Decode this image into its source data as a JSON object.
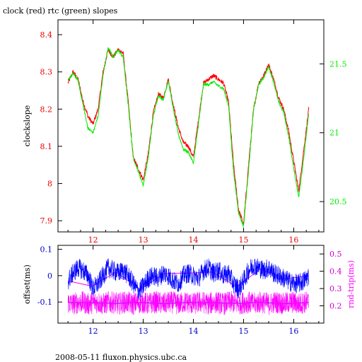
{
  "header": {
    "title": "clock (red) rtc (green) slopes"
  },
  "footer": {
    "text": "2008-05-11 fluxon.physics.ubc.ca"
  },
  "colors": {
    "red": "#ff0000",
    "green": "#00ee00",
    "blue": "#0000ff",
    "magenta": "#ff00ff",
    "axes": "#000000",
    "tick_red": "#ee0000",
    "tick_blue": "#0000cc",
    "tick_magenta": "#cc00cc"
  },
  "chart_data": [
    {
      "type": "line",
      "title": "clock (red) rtc (green) slopes",
      "xlabel": "",
      "ylabel": "clockslope",
      "y2label": "",
      "xlim": [
        11.3,
        16.6
      ],
      "ylim": [
        7.87,
        8.44
      ],
      "y2lim": [
        20.28,
        21.82
      ],
      "x_ticks": [
        "12",
        "13",
        "14",
        "15",
        "16"
      ],
      "y_ticks": [
        "7.9",
        "8",
        "8.1",
        "8.2",
        "8.3",
        "8.4"
      ],
      "y2_ticks": [
        "20.5",
        "21",
        "21.5"
      ],
      "series": [
        {
          "name": "clock",
          "axis": "left",
          "x": [
            11.5,
            11.6,
            11.7,
            11.8,
            11.9,
            12.0,
            12.1,
            12.2,
            12.3,
            12.4,
            12.5,
            12.6,
            12.7,
            12.8,
            12.9,
            13.0,
            13.1,
            13.2,
            13.3,
            13.4,
            13.5,
            13.6,
            13.7,
            13.8,
            13.9,
            14.0,
            14.1,
            14.2,
            14.3,
            14.4,
            14.5,
            14.6,
            14.7,
            14.8,
            14.9,
            15.0,
            15.1,
            15.2,
            15.3,
            15.4,
            15.5,
            15.6,
            15.7,
            15.8,
            15.9,
            16.0,
            16.1,
            16.2,
            16.3
          ],
          "values": [
            8.27,
            8.3,
            8.28,
            8.22,
            8.18,
            8.16,
            8.2,
            8.3,
            8.36,
            8.34,
            8.36,
            8.35,
            8.22,
            8.07,
            8.04,
            8.01,
            8.08,
            8.19,
            8.24,
            8.23,
            8.28,
            8.21,
            8.15,
            8.11,
            8.1,
            8.07,
            8.17,
            8.27,
            8.28,
            8.29,
            8.28,
            8.27,
            8.22,
            8.05,
            7.93,
            7.89,
            8.05,
            8.2,
            8.27,
            8.29,
            8.32,
            8.28,
            8.23,
            8.2,
            8.14,
            8.06,
            7.98,
            8.09,
            8.2
          ]
        },
        {
          "name": "rtc",
          "axis": "right",
          "x": [
            11.5,
            11.6,
            11.7,
            11.8,
            11.9,
            12.0,
            12.1,
            12.2,
            12.3,
            12.4,
            12.5,
            12.6,
            12.7,
            12.8,
            12.9,
            13.0,
            13.1,
            13.2,
            13.3,
            13.4,
            13.5,
            13.6,
            13.7,
            13.8,
            13.9,
            14.0,
            14.1,
            14.2,
            14.3,
            14.4,
            14.5,
            14.6,
            14.7,
            14.8,
            14.9,
            15.0,
            15.1,
            15.2,
            15.3,
            15.4,
            15.5,
            15.6,
            15.7,
            15.8,
            15.9,
            16.0,
            16.1,
            16.2,
            16.3
          ],
          "values": [
            21.38,
            21.43,
            21.38,
            21.2,
            21.03,
            21.0,
            21.12,
            21.42,
            21.62,
            21.55,
            21.6,
            21.55,
            21.2,
            20.82,
            20.72,
            20.62,
            20.82,
            21.12,
            21.27,
            21.24,
            21.38,
            21.17,
            20.99,
            20.88,
            20.86,
            20.78,
            21.06,
            21.35,
            21.35,
            21.37,
            21.34,
            21.32,
            21.2,
            20.72,
            20.42,
            20.32,
            20.73,
            21.17,
            21.35,
            21.4,
            21.48,
            21.37,
            21.22,
            21.15,
            20.97,
            20.74,
            20.53,
            20.82,
            21.14
          ]
        }
      ]
    },
    {
      "type": "line",
      "xlabel": "",
      "ylabel": "offset(ms)",
      "y2label": "rnd-trip(ms)",
      "xlim": [
        11.3,
        16.6
      ],
      "ylim": [
        -0.18,
        0.115
      ],
      "y2lim": [
        0.1,
        0.55
      ],
      "x_ticks": [
        "12",
        "13",
        "14",
        "15",
        "16"
      ],
      "y_ticks": [
        "-0.1",
        "0",
        "0.1"
      ],
      "y2_ticks": [
        "0.2",
        "0.3",
        "0.4",
        "0.5"
      ],
      "series": [
        {
          "name": "offset",
          "axis": "left",
          "x": [
            11.5,
            11.6,
            11.7,
            11.8,
            11.9,
            12.0,
            12.1,
            12.2,
            12.3,
            12.4,
            12.5,
            12.6,
            12.7,
            12.8,
            12.9,
            13.0,
            13.1,
            13.2,
            13.3,
            13.4,
            13.5,
            13.6,
            13.7,
            13.8,
            13.9,
            14.0,
            14.1,
            14.2,
            14.3,
            14.4,
            14.5,
            14.6,
            14.7,
            14.8,
            14.9,
            15.0,
            15.1,
            15.2,
            15.3,
            15.4,
            15.5,
            15.6,
            15.7,
            15.8,
            15.9,
            16.0,
            16.1,
            16.2,
            16.3
          ],
          "values": [
            -0.02,
            0.01,
            0.03,
            0.02,
            0.0,
            -0.05,
            -0.03,
            0.0,
            0.03,
            0.02,
            0.01,
            0.02,
            0.0,
            -0.03,
            -0.06,
            -0.04,
            -0.01,
            0.0,
            -0.01,
            0.01,
            0.0,
            -0.02,
            -0.03,
            0.0,
            0.01,
            0.0,
            -0.01,
            0.02,
            0.03,
            0.01,
            0.02,
            0.0,
            0.01,
            -0.03,
            -0.05,
            -0.02,
            0.02,
            0.04,
            0.03,
            0.02,
            0.03,
            0.01,
            0.0,
            -0.01,
            -0.02,
            -0.03,
            -0.03,
            -0.02,
            0.0
          ]
        },
        {
          "name": "rnd-trip",
          "axis": "right",
          "x": [
            11.5,
            11.6,
            11.7,
            11.8,
            11.9,
            12.0,
            12.1,
            12.2,
            12.3,
            12.4,
            12.5,
            12.6,
            12.7,
            12.8,
            12.9,
            13.0,
            13.1,
            13.2,
            13.3,
            13.4,
            13.5,
            13.6,
            13.7,
            13.8,
            13.9,
            14.0,
            14.1,
            14.2,
            14.3,
            14.4,
            14.5,
            14.6,
            14.7,
            14.8,
            14.9,
            15.0,
            15.1,
            15.2,
            15.3,
            15.4,
            15.5,
            15.6,
            15.7,
            15.8,
            15.9,
            16.0,
            16.1,
            16.2,
            16.3
          ],
          "values": [
            0.22,
            0.21,
            0.22,
            0.22,
            0.21,
            0.22,
            0.22,
            0.21,
            0.22,
            0.22,
            0.21,
            0.22,
            0.22,
            0.21,
            0.22,
            0.22,
            0.21,
            0.22,
            0.22,
            0.21,
            0.22,
            0.22,
            0.21,
            0.22,
            0.22,
            0.21,
            0.22,
            0.22,
            0.21,
            0.22,
            0.22,
            0.21,
            0.22,
            0.22,
            0.21,
            0.22,
            0.22,
            0.21,
            0.22,
            0.22,
            0.21,
            0.22,
            0.22,
            0.21,
            0.22,
            0.22,
            0.21,
            0.22,
            0.22
          ]
        }
      ]
    }
  ]
}
